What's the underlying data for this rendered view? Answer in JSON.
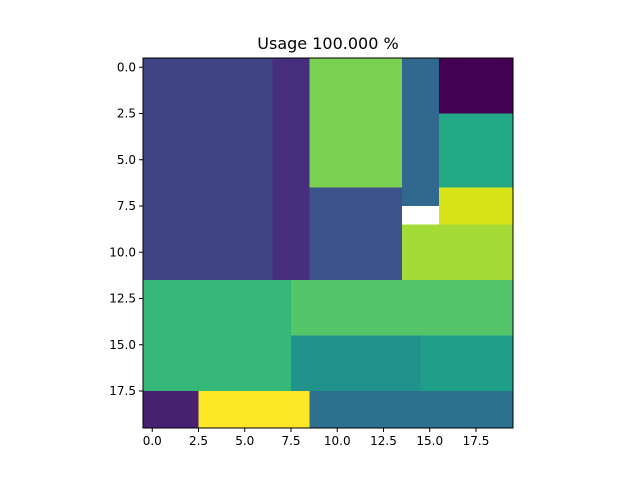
{
  "chart_data": {
    "type": "heatmap",
    "title": "Usage 100.000  %",
    "xlabel": "",
    "ylabel": "",
    "x_extent": [
      -0.5,
      19.5
    ],
    "y_extent": [
      -0.5,
      19.5
    ],
    "y_inverted": true,
    "grid": false,
    "x_ticks": [
      {
        "value": 0.0,
        "label": "0.0"
      },
      {
        "value": 2.5,
        "label": "2.5"
      },
      {
        "value": 5.0,
        "label": "5.0"
      },
      {
        "value": 7.5,
        "label": "7.5"
      },
      {
        "value": 10.0,
        "label": "10.0"
      },
      {
        "value": 12.5,
        "label": "12.5"
      },
      {
        "value": 15.0,
        "label": "15.0"
      },
      {
        "value": 17.5,
        "label": "17.5"
      }
    ],
    "y_ticks": [
      {
        "value": 0.0,
        "label": "0.0"
      },
      {
        "value": 2.5,
        "label": "2.5"
      },
      {
        "value": 5.0,
        "label": "5.0"
      },
      {
        "value": 7.5,
        "label": "7.5"
      },
      {
        "value": 10.0,
        "label": "10.0"
      },
      {
        "value": 12.5,
        "label": "12.5"
      },
      {
        "value": 15.0,
        "label": "15.0"
      },
      {
        "value": 17.5,
        "label": "17.5"
      }
    ],
    "regions": [
      {
        "cols": [
          0,
          6
        ],
        "rows": [
          0,
          11
        ],
        "color": "#414487"
      },
      {
        "cols": [
          7,
          8
        ],
        "rows": [
          0,
          11
        ],
        "color": "#472f7d"
      },
      {
        "cols": [
          9,
          13
        ],
        "rows": [
          0,
          6
        ],
        "color": "#7ad151"
      },
      {
        "cols": [
          14,
          15
        ],
        "rows": [
          0,
          7
        ],
        "color": "#31688e"
      },
      {
        "cols": [
          16,
          19
        ],
        "rows": [
          0,
          2
        ],
        "color": "#440154"
      },
      {
        "cols": [
          16,
          19
        ],
        "rows": [
          3,
          6
        ],
        "color": "#22a884"
      },
      {
        "cols": [
          16,
          19
        ],
        "rows": [
          7,
          8
        ],
        "color": "#d8e219"
      },
      {
        "cols": [
          9,
          13
        ],
        "rows": [
          7,
          11
        ],
        "color": "#3b528b"
      },
      {
        "cols": [
          14,
          19
        ],
        "rows": [
          9,
          11
        ],
        "color": "#a5db36"
      },
      {
        "cols": [
          0,
          7
        ],
        "rows": [
          12,
          17
        ],
        "color": "#35b779"
      },
      {
        "cols": [
          8,
          19
        ],
        "rows": [
          12,
          14
        ],
        "color": "#54c568"
      },
      {
        "cols": [
          8,
          14
        ],
        "rows": [
          15,
          17
        ],
        "color": "#21918c"
      },
      {
        "cols": [
          15,
          19
        ],
        "rows": [
          15,
          17
        ],
        "color": "#1f9e89"
      },
      {
        "cols": [
          0,
          2
        ],
        "rows": [
          18,
          19
        ],
        "color": "#482173"
      },
      {
        "cols": [
          3,
          8
        ],
        "rows": [
          18,
          19
        ],
        "color": "#fde725"
      },
      {
        "cols": [
          9,
          19
        ],
        "rows": [
          18,
          19
        ],
        "color": "#2c728e"
      }
    ]
  }
}
